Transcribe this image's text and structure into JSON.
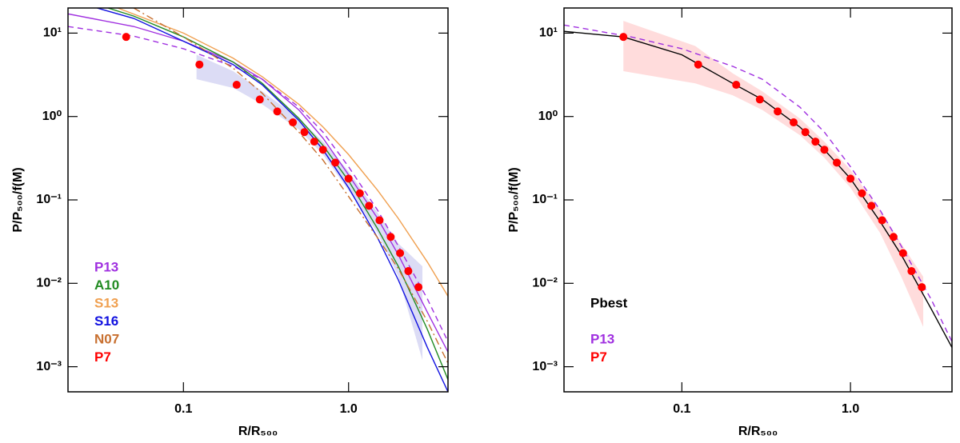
{
  "chart_data": [
    {
      "type": "line",
      "xlabel": "R/R₅₀₀",
      "ylabel": "P/P₅₀₀/f(M)",
      "xlim": [
        0.02,
        4
      ],
      "ylim": [
        0.0005,
        20
      ],
      "log_x": true,
      "log_y": true,
      "legend": "lower left",
      "xticks": [
        0.1,
        {
          "value": 1,
          "label": "1.0"
        }
      ],
      "yticks": [
        {
          "value": 0.001,
          "label": "10⁻³"
        },
        {
          "value": 0.01,
          "label": "10⁻²"
        },
        {
          "value": 0.1,
          "label": "10⁻¹"
        },
        {
          "value": 1,
          "label": "10⁰"
        },
        {
          "value": 10,
          "label": "10¹"
        }
      ],
      "band": {
        "color": "#dcdcf5",
        "x": [
          0.12,
          0.2,
          0.3,
          0.5,
          0.7,
          1,
          1.5,
          2,
          2.8
        ],
        "lower": [
          2.8,
          2.2,
          1.4,
          0.7,
          0.35,
          0.13,
          0.04,
          0.012,
          0.0012
        ],
        "upper": [
          5.5,
          3.5,
          2.0,
          0.95,
          0.5,
          0.22,
          0.07,
          0.03,
          0.016
        ]
      },
      "series": [
        {
          "color": "#a030e0",
          "style": "dashed",
          "x": [
            0.02,
            0.05,
            0.1,
            0.2,
            0.3,
            0.5,
            0.7,
            1,
            1.5,
            2,
            3,
            4
          ],
          "values": [
            12,
            9.2,
            6.5,
            4,
            2.8,
            1.3,
            0.65,
            0.25,
            0.075,
            0.028,
            0.0065,
            0.002
          ]
        },
        {
          "name": "P13",
          "color": "#a030e0",
          "style": "solid",
          "x": [
            0.02,
            0.05,
            0.1,
            0.2,
            0.3,
            0.5,
            0.7,
            1,
            1.5,
            2,
            3,
            4
          ],
          "values": [
            17,
            12,
            8,
            4.5,
            2.8,
            1.2,
            0.55,
            0.2,
            0.06,
            0.022,
            0.0045,
            0.0015
          ]
        },
        {
          "name": "A10",
          "color": "#228b22",
          "style": "solid",
          "x": [
            0.03,
            0.05,
            0.1,
            0.2,
            0.3,
            0.5,
            0.7,
            1,
            1.5,
            2,
            3,
            4
          ],
          "values": [
            22,
            16,
            9,
            4.5,
            2.5,
            0.95,
            0.45,
            0.17,
            0.045,
            0.016,
            0.0028,
            0.0007
          ]
        },
        {
          "name": "S13",
          "color": "#f0a050",
          "style": "solid",
          "x": [
            0.04,
            0.1,
            0.2,
            0.3,
            0.5,
            0.7,
            1,
            1.5,
            2,
            3,
            4
          ],
          "values": [
            20,
            10,
            5,
            3,
            1.4,
            0.75,
            0.35,
            0.13,
            0.06,
            0.018,
            0.007
          ]
        },
        {
          "name": "S16",
          "color": "#1010e0",
          "style": "solid",
          "x": [
            0.03,
            0.05,
            0.1,
            0.2,
            0.3,
            0.5,
            0.7,
            1,
            1.5,
            2,
            3,
            4
          ],
          "values": [
            20,
            15,
            8,
            4.2,
            2.4,
            0.9,
            0.4,
            0.14,
            0.035,
            0.011,
            0.0017,
            0.0005
          ]
        },
        {
          "name": "N07",
          "color": "#c87030",
          "style": "dashdot",
          "x": [
            0.05,
            0.1,
            0.2,
            0.3,
            0.5,
            0.7,
            1,
            1.5,
            2,
            3,
            4
          ],
          "values": [
            20,
            9,
            3.8,
            1.9,
            0.65,
            0.3,
            0.11,
            0.035,
            0.015,
            0.0035,
            0.0011
          ]
        },
        {
          "name": "P7",
          "color": "#ff0000",
          "style": "markers",
          "x": [
            0.045,
            0.125,
            0.21,
            0.29,
            0.37,
            0.46,
            0.54,
            0.62,
            0.7,
            0.83,
            1.0,
            1.17,
            1.33,
            1.54,
            1.8,
            2.05,
            2.3,
            2.65
          ],
          "values": [
            9,
            4.2,
            2.4,
            1.6,
            1.15,
            0.85,
            0.65,
            0.5,
            0.4,
            0.28,
            0.18,
            0.12,
            0.085,
            0.057,
            0.036,
            0.023,
            0.014,
            0.009
          ]
        }
      ]
    },
    {
      "type": "line",
      "xlabel": "R/R₅₀₀",
      "ylabel": "P/P₅₀₀/f(M)",
      "xlim": [
        0.02,
        4
      ],
      "ylim": [
        0.0005,
        20
      ],
      "log_x": true,
      "log_y": true,
      "legend": "lower left",
      "xticks": [
        0.1,
        {
          "value": 1,
          "label": "1.0"
        }
      ],
      "yticks": [
        {
          "value": 0.001,
          "label": "10⁻³"
        },
        {
          "value": 0.01,
          "label": "10⁻²"
        },
        {
          "value": 0.1,
          "label": "10⁻¹"
        },
        {
          "value": 1,
          "label": "10⁰"
        },
        {
          "value": 10,
          "label": "10¹"
        }
      ],
      "band": {
        "color": "#ffdcdc",
        "x": [
          0.045,
          0.12,
          0.2,
          0.3,
          0.5,
          0.7,
          1,
          1.5,
          2,
          2.7
        ],
        "lower": [
          3.5,
          2.5,
          1.8,
          1.2,
          0.6,
          0.32,
          0.14,
          0.04,
          0.012,
          0.003
        ],
        "upper": [
          14,
          7,
          3.3,
          2.0,
          0.95,
          0.5,
          0.23,
          0.075,
          0.03,
          0.012
        ]
      },
      "series": [
        {
          "name": "Pbest",
          "color": "#000000",
          "style": "solid",
          "x": [
            0.02,
            0.045,
            0.1,
            0.2,
            0.3,
            0.5,
            0.7,
            1,
            1.5,
            2,
            3,
            4
          ],
          "values": [
            10.5,
            9,
            5.5,
            2.5,
            1.6,
            0.75,
            0.4,
            0.18,
            0.055,
            0.022,
            0.005,
            0.0017
          ]
        },
        {
          "name": "P13",
          "color": "#a030e0",
          "style": "dashed",
          "x": [
            0.02,
            0.05,
            0.1,
            0.2,
            0.3,
            0.5,
            0.7,
            1,
            1.5,
            2,
            3,
            4
          ],
          "values": [
            12.5,
            9,
            6.5,
            4,
            2.8,
            1.3,
            0.65,
            0.25,
            0.075,
            0.028,
            0.0065,
            0.002
          ]
        },
        {
          "name": "P7",
          "color": "#ff0000",
          "style": "markers",
          "x": [
            0.045,
            0.125,
            0.21,
            0.29,
            0.37,
            0.46,
            0.54,
            0.62,
            0.7,
            0.83,
            1.0,
            1.17,
            1.33,
            1.54,
            1.8,
            2.05,
            2.3,
            2.65
          ],
          "values": [
            9,
            4.2,
            2.4,
            1.6,
            1.15,
            0.85,
            0.65,
            0.5,
            0.4,
            0.28,
            0.18,
            0.12,
            0.085,
            0.057,
            0.036,
            0.023,
            0.014,
            0.009
          ]
        }
      ]
    }
  ]
}
